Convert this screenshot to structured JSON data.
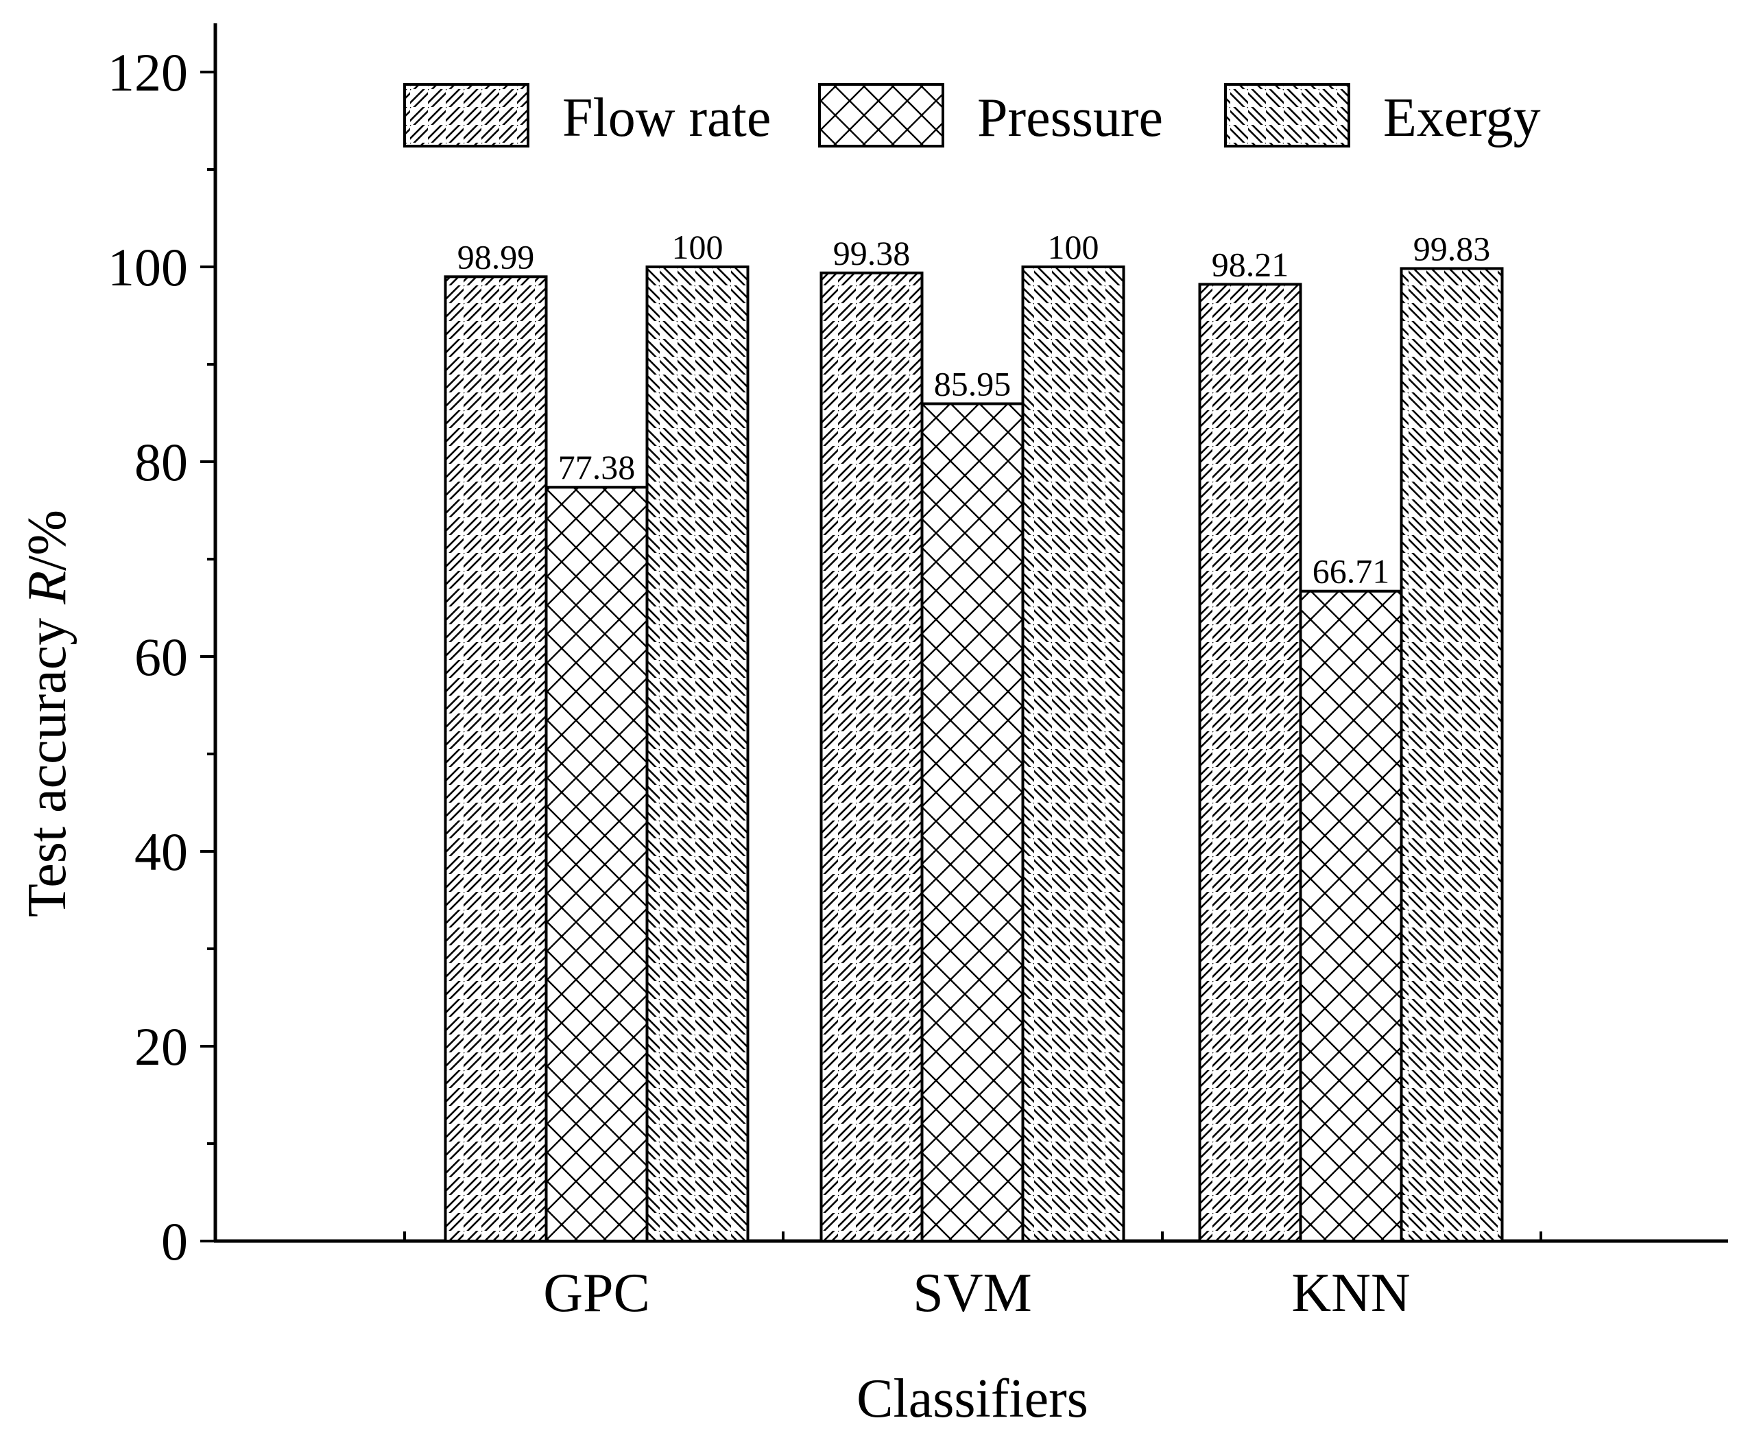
{
  "chart_data": {
    "type": "bar",
    "categories": [
      "GPC",
      "SVM",
      "KNN"
    ],
    "series": [
      {
        "name": "Flow rate",
        "pattern": "forward-hatch",
        "values": [
          98.99,
          99.38,
          98.21
        ],
        "labels": [
          "98.99",
          "99.38",
          "98.21"
        ]
      },
      {
        "name": "Pressure",
        "pattern": "cross-hatch",
        "values": [
          77.38,
          85.95,
          66.71
        ],
        "labels": [
          "77.38",
          "85.95",
          "66.71"
        ]
      },
      {
        "name": "Exergy",
        "pattern": "back-hatch",
        "values": [
          100,
          100,
          99.83
        ],
        "labels": [
          "100",
          "100",
          "99.83"
        ]
      }
    ],
    "xlabel": "Classifiers",
    "ylabel_prefix": "Test accuracy ",
    "ylabel_symbol": "R",
    "ylabel_suffix": "/%",
    "ylim": [
      0,
      125
    ],
    "yticks": [
      0,
      20,
      40,
      60,
      80,
      100,
      120
    ],
    "minor_ytick_step": 10,
    "grid": false,
    "legend_position": "top"
  }
}
